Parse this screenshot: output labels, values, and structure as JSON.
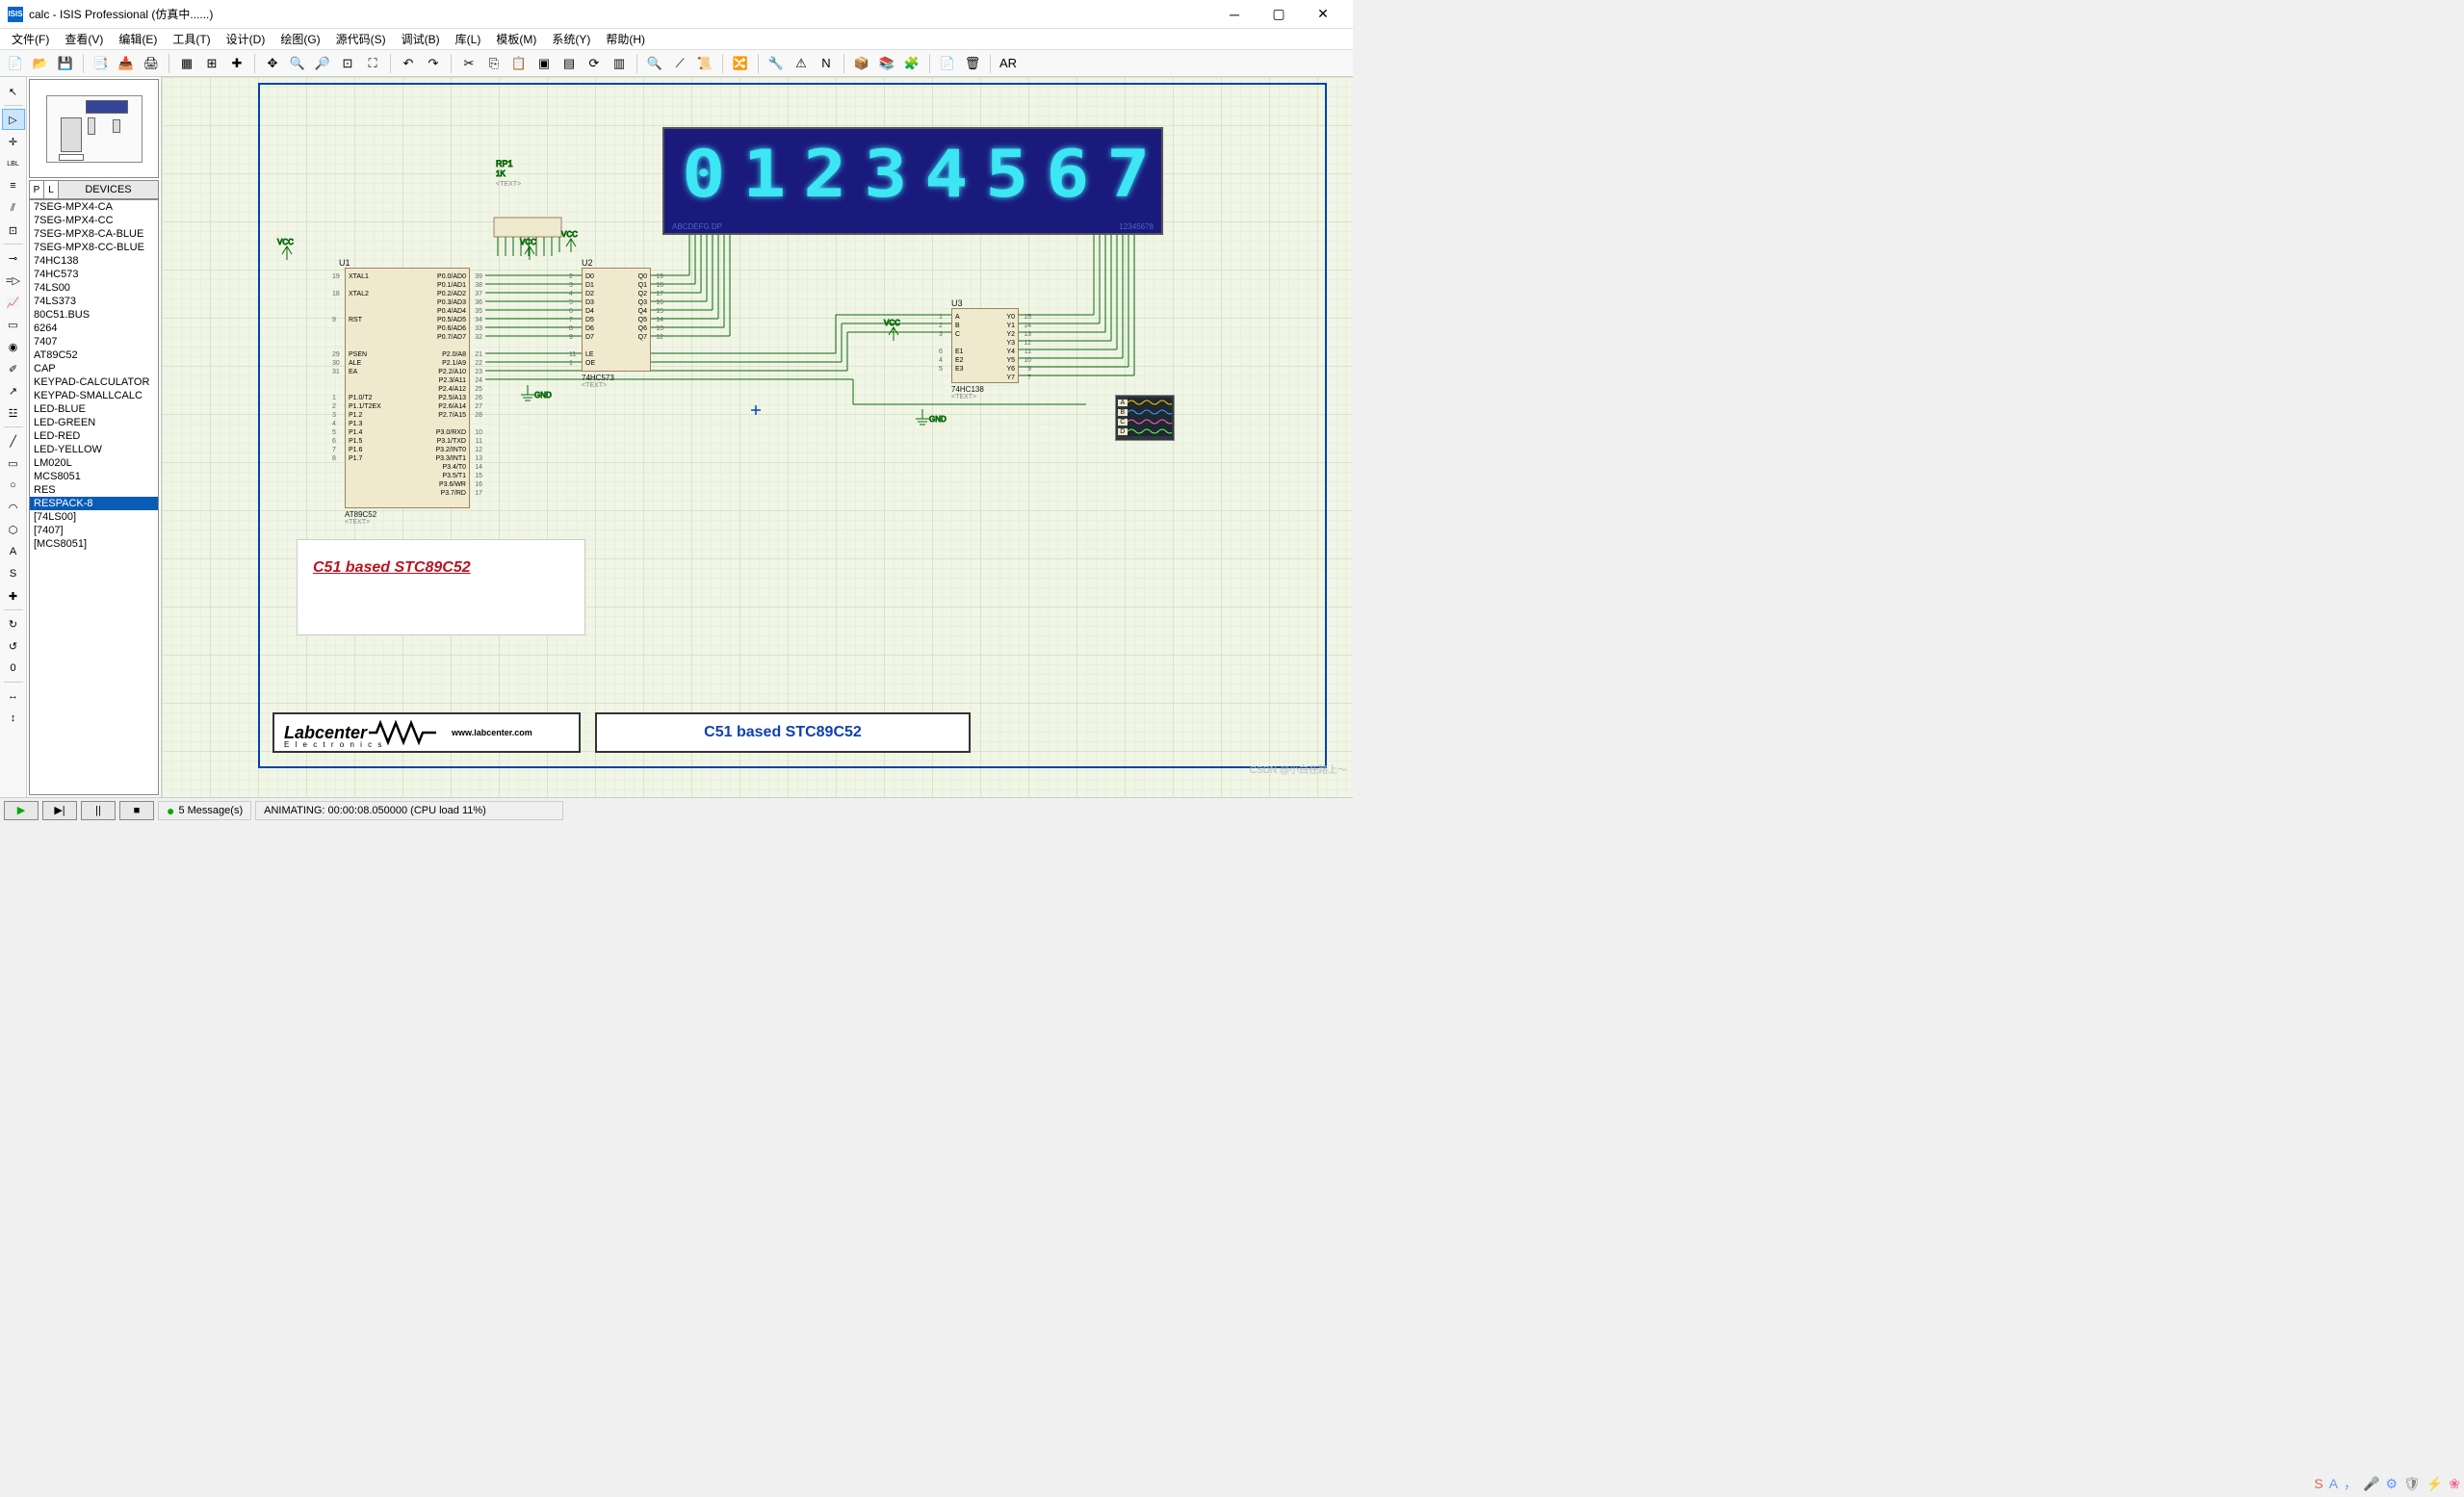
{
  "window": {
    "icon_text": "ISIS",
    "title": "calc - ISIS Professional (仿真中......)",
    "min": "─",
    "max": "▢",
    "close": "✕"
  },
  "menu": {
    "items": [
      "文件(F)",
      "查看(V)",
      "编辑(E)",
      "工具(T)",
      "设计(D)",
      "绘图(G)",
      "源代码(S)",
      "调试(B)",
      "库(L)",
      "模板(M)",
      "系统(Y)",
      "帮助(H)"
    ]
  },
  "toolbar": {
    "groups": [
      [
        "new-file",
        "📄",
        "open-folder",
        "📂",
        "save",
        "💾"
      ],
      [
        "copy-sheet",
        "📑",
        "import",
        "📥",
        "print",
        "🖨"
      ],
      [
        "area-select",
        "▦",
        "grid",
        "⊞",
        "origin",
        "✚"
      ],
      [
        "pan",
        "✥",
        "zoom-in",
        "🔍",
        "zoom-out",
        "🔎",
        "zoom-all",
        "⊡",
        "zoom-area",
        "⛶"
      ],
      [
        "undo",
        "↶",
        "redo",
        "↷"
      ],
      [
        "cut",
        "✂",
        "copy",
        "⎘",
        "paste",
        "📋",
        "block-copy",
        "▣",
        "block-move",
        "▤",
        "block-rotate",
        "⟳",
        "block-delete",
        "▥"
      ],
      [
        "pick",
        "🔍",
        "wire-tool",
        "⟋",
        "script",
        "📜"
      ],
      [
        "toggle",
        "🔀"
      ],
      [
        "bom",
        "🔧",
        "erc",
        "⚠",
        "netlist",
        "N"
      ],
      [
        "package",
        "📦",
        "library",
        "📚",
        "decompose",
        "🧩"
      ],
      [
        "new-sheet",
        "📄",
        "delete-sheet",
        "🗑"
      ],
      [
        "ares",
        "AR"
      ]
    ]
  },
  "left_tools": [
    {
      "name": "selection",
      "glyph": "↖",
      "active": false
    },
    {
      "name": "component",
      "glyph": "▷",
      "active": true
    },
    {
      "name": "junction",
      "glyph": "✛",
      "active": false
    },
    {
      "name": "label",
      "glyph": "LBL",
      "active": false
    },
    {
      "name": "text-script",
      "glyph": "≡",
      "active": false
    },
    {
      "name": "bus",
      "glyph": "⫽",
      "active": false
    },
    {
      "name": "subcircuit",
      "glyph": "⊡",
      "active": false
    },
    {
      "name": "terminal",
      "glyph": "⊸",
      "active": false
    },
    {
      "name": "device-pin",
      "glyph": "=▷",
      "active": false
    },
    {
      "name": "graph",
      "glyph": "📈",
      "active": false
    },
    {
      "name": "tape",
      "glyph": "▭",
      "active": false
    },
    {
      "name": "generator",
      "glyph": "◉",
      "active": false
    },
    {
      "name": "probe-v",
      "glyph": "✐",
      "active": false
    },
    {
      "name": "probe-i",
      "glyph": "↗",
      "active": false
    },
    {
      "name": "instrument",
      "glyph": "☳",
      "active": false
    },
    {
      "name": "line",
      "glyph": "╱",
      "active": false
    },
    {
      "name": "box",
      "glyph": "▭",
      "active": false
    },
    {
      "name": "circle",
      "glyph": "○",
      "active": false
    },
    {
      "name": "arc",
      "glyph": "◠",
      "active": false
    },
    {
      "name": "path",
      "glyph": "⬡",
      "active": false
    },
    {
      "name": "text",
      "glyph": "A",
      "active": false
    },
    {
      "name": "symbol",
      "glyph": "S",
      "active": false
    },
    {
      "name": "marker",
      "glyph": "✚",
      "active": false
    },
    {
      "name": "rot-cw",
      "glyph": "↻",
      "active": false
    },
    {
      "name": "rot-ccw",
      "glyph": "↺",
      "active": false
    },
    {
      "name": "angle",
      "glyph": "0",
      "active": false
    },
    {
      "name": "mirror-h",
      "glyph": "↔",
      "active": false
    },
    {
      "name": "mirror-v",
      "glyph": "↕",
      "active": false
    }
  ],
  "device_header": {
    "p": "P",
    "l": "L",
    "label": "DEVICES"
  },
  "devices": [
    "7SEG-MPX4-CA",
    "7SEG-MPX4-CC",
    "7SEG-MPX8-CA-BLUE",
    "7SEG-MPX8-CC-BLUE",
    "74HC138",
    "74HC573",
    "74LS00",
    "74LS373",
    "80C51.BUS",
    "6264",
    "7407",
    "AT89C52",
    "CAP",
    "KEYPAD-CALCULATOR",
    "KEYPAD-SMALLCALC",
    "LED-BLUE",
    "LED-GREEN",
    "LED-RED",
    "LED-YELLOW",
    "LM020L",
    "MCS8051",
    "RES",
    "RESPACK-8",
    "[74LS00]",
    "[7407]",
    "[MCS8051]"
  ],
  "device_selected": "RESPACK-8",
  "schematic": {
    "rp1": {
      "ref": "RP1",
      "value": "1K",
      "text": "<TEXT>"
    },
    "u1": {
      "ref": "U1",
      "part": "AT89C52",
      "text": "<TEXT>",
      "left_pins_top": [
        "XTAL1",
        "",
        "XTAL2",
        "",
        "",
        "RST",
        "",
        "",
        "",
        "PSEN",
        "ALE",
        "EA",
        "",
        "",
        "P1.0/T2",
        "P1.1/T2EX",
        "P1.2",
        "P1.3",
        "P1.4",
        "P1.5",
        "P1.6",
        "P1.7"
      ],
      "left_nums_top": [
        "19",
        "",
        "18",
        "",
        "",
        "9",
        "",
        "",
        "",
        "29",
        "30",
        "31",
        "",
        "",
        "1",
        "2",
        "3",
        "4",
        "5",
        "6",
        "7",
        "8"
      ],
      "right_pins": [
        "P0.0/AD0",
        "P0.1/AD1",
        "P0.2/AD2",
        "P0.3/AD3",
        "P0.4/AD4",
        "P0.5/AD5",
        "P0.6/AD6",
        "P0.7/AD7",
        "",
        "P2.0/A8",
        "P2.1/A9",
        "P2.2/A10",
        "P2.3/A11",
        "P2.4/A12",
        "P2.5/A13",
        "P2.6/A14",
        "P2.7/A15",
        "",
        "P3.0/RXD",
        "P3.1/TXD",
        "P3.2/INT0",
        "P3.3/INT1",
        "P3.4/T0",
        "P3.5/T1",
        "P3.6/WR",
        "P3.7/RD"
      ],
      "right_nums": [
        "39",
        "38",
        "37",
        "36",
        "35",
        "34",
        "33",
        "32",
        "",
        "21",
        "22",
        "23",
        "24",
        "25",
        "26",
        "27",
        "28",
        "",
        "10",
        "11",
        "12",
        "13",
        "14",
        "15",
        "16",
        "17"
      ]
    },
    "u2": {
      "ref": "U2",
      "part": "74HC573",
      "text": "<TEXT>",
      "left_pins": [
        "D0",
        "D1",
        "D2",
        "D3",
        "D4",
        "D5",
        "D6",
        "D7",
        "",
        "LE",
        "OE"
      ],
      "left_nums": [
        "2",
        "3",
        "4",
        "5",
        "6",
        "7",
        "8",
        "9",
        "",
        "11",
        "1"
      ],
      "right_pins": [
        "Q0",
        "Q1",
        "Q2",
        "Q3",
        "Q4",
        "Q5",
        "Q6",
        "Q7"
      ],
      "right_nums": [
        "19",
        "18",
        "17",
        "16",
        "15",
        "14",
        "13",
        "12"
      ]
    },
    "u3": {
      "ref": "U3",
      "part": "74HC138",
      "text": "<TEXT>",
      "left_pins": [
        "A",
        "B",
        "C",
        "",
        "E1",
        "E2",
        "E3"
      ],
      "left_nums": [
        "1",
        "2",
        "3",
        "",
        "6",
        "4",
        "5"
      ],
      "right_pins": [
        "Y0",
        "Y1",
        "Y2",
        "Y3",
        "Y4",
        "Y5",
        "Y6",
        "Y7"
      ],
      "right_nums": [
        "15",
        "14",
        "13",
        "12",
        "11",
        "10",
        "9",
        "7"
      ]
    },
    "display": {
      "digits": [
        "0",
        "1",
        "2",
        "3",
        "4",
        "5",
        "6",
        "7"
      ],
      "left_lbl": "ABCDEFG  DP",
      "right_lbl": "12345678"
    },
    "pwr": {
      "vcc": "VCC",
      "gnd": "GND"
    },
    "scope": {
      "ch": [
        "A",
        "B",
        "C",
        "D"
      ]
    },
    "title_text": "C51 based STC89C52",
    "logo": {
      "brand": "Labcenter",
      "sub": "E l e c t r o n i c s",
      "url": "www.labcenter.com"
    },
    "title2": "C51 based STC89C52"
  },
  "status": {
    "play": "▶",
    "step": "▶|",
    "pause": "||",
    "stop": "■",
    "msg_icon": "●",
    "msg": "5 Message(s)",
    "anim": "ANIMATING: 00:00:08.050000 (CPU load 11%)"
  },
  "tray": {
    "icons": [
      "S",
      "A",
      "，",
      "🎤",
      "⚙",
      "🛡",
      "⚡",
      "❀"
    ]
  },
  "csdn": "CSDN @小白在路上～",
  "colors": {
    "wire": "#0a6a0a",
    "ic_fill": "#efeace",
    "ic_border": "#a08060",
    "display_bg": "#1a1a7d",
    "display_fg": "#3de6f4",
    "border": "#0044aa"
  }
}
